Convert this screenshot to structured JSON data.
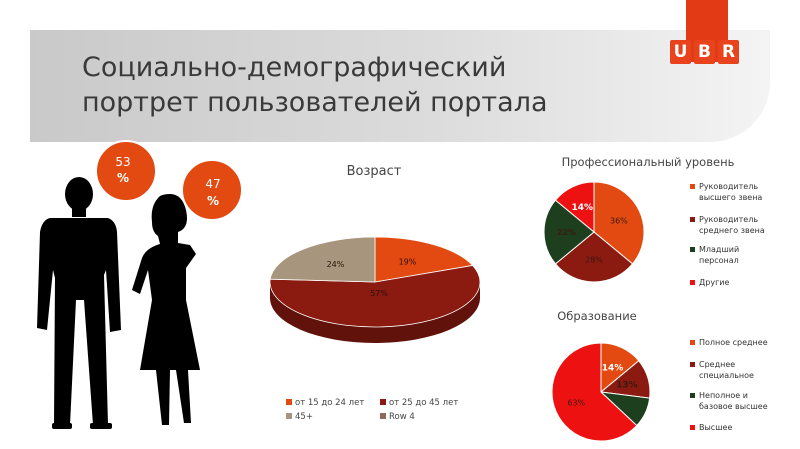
{
  "header": {
    "title_line1": "Социально-демографический",
    "title_line2": "портрет пользователей портала",
    "logo_letters": [
      "U",
      "B",
      "R"
    ]
  },
  "gender": {
    "male_value": "53",
    "male_unit": "%",
    "female_value": "47",
    "female_unit": "%"
  },
  "colors": {
    "orange": "#e24a12",
    "darkred": "#8b1a10",
    "tan": "#a8957d",
    "green": "#1e3f1e",
    "brightred": "#ee1111"
  },
  "chart_data": [
    {
      "type": "pie",
      "title": "Возраст",
      "labels": [
        "от 15 до 24 лет",
        "от 25 до 45 лет",
        "45+",
        "Row 4"
      ],
      "values": [
        19,
        57,
        24,
        0
      ],
      "data_labels": [
        "19%",
        "57%",
        "24%",
        ""
      ],
      "colors": [
        "#e24a12",
        "#8b1a10",
        "#a8957d",
        "#8b6a5a"
      ],
      "legend_position": "bottom",
      "style": "3d"
    },
    {
      "type": "pie",
      "title": "Профессиональный уровень",
      "labels": [
        "Руководитель высшего звена",
        "Руководитель среднего звена",
        "Младший персонал",
        "Другие"
      ],
      "values": [
        36,
        28,
        22,
        14
      ],
      "data_labels": [
        "36%",
        "28%",
        "22%",
        "14%"
      ],
      "colors": [
        "#e24a12",
        "#8b1a10",
        "#1e3f1e",
        "#ee1111"
      ],
      "legend_position": "right"
    },
    {
      "type": "pie",
      "title": "Образование",
      "labels": [
        "Полное среднее",
        "Среднее специальное",
        "Неполное и базовое высшее",
        "Высшее"
      ],
      "values": [
        14,
        13,
        10,
        63
      ],
      "data_labels": [
        "14%",
        "13%",
        "",
        "63%"
      ],
      "colors": [
        "#e24a12",
        "#8b1a10",
        "#1e3f1e",
        "#ee1111"
      ],
      "legend_position": "right"
    }
  ]
}
